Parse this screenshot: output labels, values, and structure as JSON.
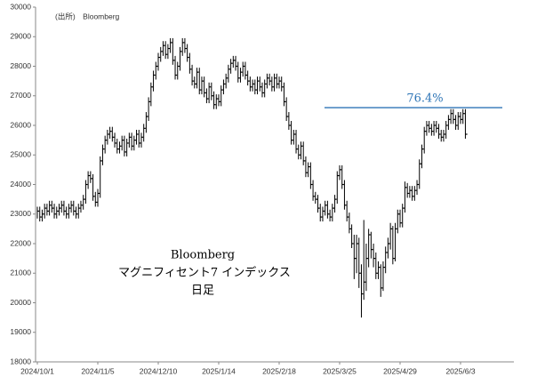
{
  "chart_data": {
    "type": "hlc",
    "source": "(出所)　Bloomberg",
    "annotations": [
      "Bloomberg",
      "マグニフィセント7 インデックス",
      "日足"
    ],
    "hline": {
      "value": 26600,
      "label": "76.4%",
      "color": "#2e75b6"
    },
    "color": "#000000",
    "ylim": [
      18000,
      30000
    ],
    "yticks": [
      18000,
      19000,
      20000,
      21000,
      22000,
      23000,
      24000,
      25000,
      26000,
      27000,
      28000,
      29000,
      30000
    ],
    "categories": [
      "2024/10/1",
      null,
      null,
      null,
      null,
      null,
      null,
      null,
      null,
      null,
      null,
      null,
      null,
      null,
      null,
      null,
      null,
      null,
      null,
      null,
      null,
      null,
      null,
      null,
      null,
      "2024/11/5",
      null,
      null,
      null,
      null,
      null,
      null,
      null,
      null,
      null,
      null,
      null,
      null,
      null,
      null,
      null,
      null,
      null,
      null,
      null,
      null,
      null,
      null,
      null,
      null,
      "2024/12/10",
      null,
      null,
      null,
      null,
      null,
      null,
      null,
      null,
      null,
      null,
      null,
      null,
      null,
      null,
      null,
      null,
      null,
      null,
      null,
      null,
      null,
      null,
      null,
      null,
      "2025/1/14",
      null,
      null,
      null,
      null,
      null,
      null,
      null,
      null,
      null,
      null,
      null,
      null,
      null,
      null,
      null,
      null,
      null,
      null,
      null,
      null,
      null,
      null,
      null,
      null,
      "2025/2/18",
      null,
      null,
      null,
      null,
      null,
      null,
      null,
      null,
      null,
      null,
      null,
      null,
      null,
      null,
      null,
      null,
      null,
      null,
      null,
      null,
      null,
      null,
      null,
      null,
      "2025/3/25",
      null,
      null,
      null,
      null,
      null,
      null,
      null,
      null,
      null,
      null,
      null,
      null,
      null,
      null,
      null,
      null,
      null,
      null,
      null,
      null,
      null,
      null,
      null,
      null,
      "2025/4/29",
      null,
      null,
      null,
      null,
      null,
      null,
      null,
      null,
      null,
      null,
      null,
      null,
      null,
      null,
      null,
      null,
      null,
      null,
      null,
      null,
      null,
      null,
      null,
      null,
      "2025/6/3",
      null,
      null
    ],
    "high": [
      23250,
      23250,
      23150,
      23350,
      23350,
      23450,
      23450,
      23350,
      23250,
      23350,
      23450,
      23450,
      23250,
      23350,
      23450,
      23450,
      23250,
      23350,
      23450,
      23650,
      24150,
      24450,
      24450,
      24350,
      23750,
      23850,
      24950,
      25350,
      25650,
      25850,
      25950,
      25950,
      25750,
      25550,
      25450,
      25650,
      25650,
      25550,
      25750,
      25750,
      25650,
      25850,
      25850,
      25750,
      26050,
      26450,
      26950,
      27450,
      27850,
      28150,
      28450,
      28650,
      28850,
      28850,
      28750,
      28950,
      28950,
      28350,
      28150,
      28650,
      28950,
      28950,
      28750,
      28450,
      28050,
      27650,
      27950,
      27950,
      27650,
      27650,
      27250,
      27450,
      27450,
      27150,
      27050,
      27050,
      27350,
      27550,
      27750,
      28050,
      28250,
      28350,
      28350,
      28150,
      27950,
      28150,
      28150,
      27850,
      27650,
      27550,
      27550,
      27650,
      27650,
      27450,
      27550,
      27750,
      27750,
      27650,
      27750,
      27750,
      27650,
      27650,
      27450,
      26950,
      26450,
      26150,
      25850,
      25850,
      25350,
      25450,
      25450,
      24950,
      24750,
      24750,
      24150,
      23750,
      23650,
      23350,
      23250,
      23450,
      23450,
      23150,
      23350,
      23650,
      24450,
      24650,
      24650,
      24150,
      23450,
      23050,
      22650,
      22300,
      22300,
      22200,
      21300,
      22800,
      22000,
      22500,
      22400,
      22000,
      21700,
      21400,
      21300,
      21400,
      21900,
      22200,
      22700,
      22600,
      22700,
      23150,
      23150,
      23350,
      24100,
      24050,
      23950,
      23950,
      23950,
      24150,
      24850,
      25350,
      25950,
      26150,
      26150,
      26050,
      26150,
      26150,
      26050,
      25850,
      25850,
      26150,
      26350,
      26550,
      26550,
      26350,
      26450,
      26450,
      26550,
      26550
    ],
    "low": [
      22850,
      22750,
      22750,
      22850,
      22950,
      22950,
      23050,
      22850,
      22850,
      22950,
      23050,
      22950,
      22850,
      22850,
      23050,
      22950,
      22850,
      22850,
      23050,
      23150,
      23350,
      23850,
      24050,
      23450,
      23250,
      23250,
      23550,
      24650,
      25050,
      25350,
      25550,
      25450,
      25250,
      25050,
      25050,
      25150,
      24950,
      24950,
      25250,
      25150,
      25150,
      25350,
      25250,
      25250,
      25450,
      25750,
      26150,
      26650,
      27150,
      27550,
      27850,
      28150,
      28350,
      28250,
      28250,
      28450,
      28050,
      27550,
      27550,
      27850,
      28350,
      28450,
      28150,
      27750,
      27350,
      27250,
      27250,
      27050,
      27050,
      26950,
      26750,
      26750,
      26850,
      26550,
      26550,
      26650,
      26650,
      27050,
      27250,
      27450,
      27750,
      27950,
      27850,
      27450,
      27450,
      27650,
      27550,
      27350,
      27150,
      27150,
      27050,
      27050,
      27150,
      26950,
      26950,
      27250,
      27350,
      27150,
      27150,
      27250,
      27250,
      27150,
      26650,
      26150,
      25850,
      25350,
      25350,
      25050,
      24850,
      24850,
      24650,
      24250,
      24250,
      23850,
      23450,
      23350,
      23050,
      22750,
      22750,
      22950,
      22850,
      22750,
      22750,
      23050,
      23350,
      24150,
      23850,
      23150,
      22750,
      22350,
      21850,
      20800,
      21000,
      20500,
      19500,
      20100,
      20400,
      21200,
      21500,
      21200,
      20800,
      20800,
      20200,
      20400,
      21000,
      21500,
      21800,
      21300,
      21400,
      22350,
      22550,
      22550,
      23050,
      23550,
      23550,
      23450,
      23450,
      23650,
      23850,
      24550,
      25050,
      25650,
      25750,
      25650,
      25650,
      25750,
      25550,
      25450,
      25450,
      25550,
      25850,
      26050,
      26050,
      25850,
      25850,
      26050,
      26050,
      25550
    ],
    "close": [
      23100,
      22900,
      23000,
      23200,
      23100,
      23300,
      23200,
      23000,
      23100,
      23200,
      23300,
      23100,
      23000,
      23200,
      23300,
      23100,
      23000,
      23200,
      23300,
      23500,
      24000,
      24300,
      24200,
      23600,
      23400,
      23700,
      24800,
      25200,
      25500,
      25700,
      25800,
      25600,
      25400,
      25200,
      25300,
      25500,
      25100,
      25400,
      25600,
      25300,
      25500,
      25700,
      25400,
      25600,
      25900,
      26300,
      26800,
      27300,
      27700,
      28000,
      28300,
      28500,
      28700,
      28400,
      28600,
      28800,
      28200,
      27700,
      28000,
      28500,
      28800,
      28600,
      28300,
      27900,
      27500,
      27400,
      27800,
      27200,
      27500,
      27100,
      26900,
      27300,
      27000,
      26700,
      26900,
      26800,
      27200,
      27400,
      27600,
      27900,
      28100,
      28200,
      28000,
      27600,
      27800,
      28000,
      27700,
      27500,
      27300,
      27400,
      27200,
      27500,
      27300,
      27100,
      27400,
      27600,
      27500,
      27300,
      27600,
      27400,
      27500,
      27300,
      26800,
      26300,
      26000,
      25500,
      25700,
      25200,
      25000,
      25300,
      24800,
      24400,
      24600,
      24000,
      23600,
      23500,
      23200,
      22900,
      23100,
      23300,
      23000,
      22900,
      23200,
      23500,
      24300,
      24500,
      24000,
      23300,
      22900,
      22500,
      22000,
      21500,
      22000,
      21000,
      20300,
      20700,
      21500,
      22300,
      21800,
      21500,
      21000,
      21200,
      20500,
      21200,
      21700,
      22000,
      22500,
      21500,
      22500,
      23000,
      22700,
      23200,
      23900,
      23700,
      23800,
      23600,
      23800,
      24000,
      24700,
      25200,
      25800,
      26000,
      25900,
      25800,
      26000,
      25900,
      25700,
      25600,
      25700,
      26000,
      26200,
      26400,
      26200,
      26000,
      26300,
      26200,
      26400,
      25700
    ]
  }
}
